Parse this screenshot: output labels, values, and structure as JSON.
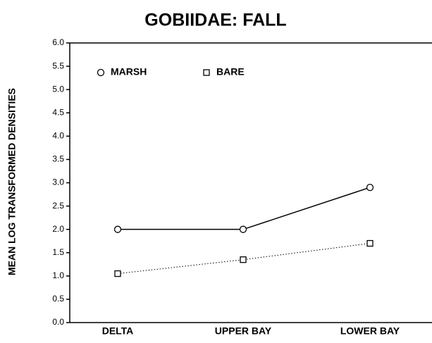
{
  "chart_data": {
    "type": "line",
    "title": "GOBIIDAE:  FALL",
    "y_label": "MEAN LOG TRANSFORMED DENSITIES",
    "categories": [
      "DELTA",
      "UPPER BAY",
      "LOWER BAY"
    ],
    "series": [
      {
        "name": "MARSH",
        "color": "#000000",
        "marker": "circle",
        "line_style": "solid",
        "values": [
          2.0,
          2.0,
          2.9
        ]
      },
      {
        "name": "BARE",
        "color": "#000000",
        "marker": "square",
        "line_style": "dotted",
        "values": [
          1.05,
          1.35,
          1.7
        ]
      }
    ],
    "ylim": [
      0,
      6
    ],
    "yticks": [
      {
        "value": 0,
        "label": "0.0"
      },
      0.5,
      {
        "value": 1,
        "label": "1.0"
      },
      1.5,
      {
        "value": 2,
        "label": "2.0"
      },
      2.5,
      {
        "value": 3,
        "label": "3.0"
      },
      3.5,
      {
        "value": 4,
        "label": "4.0"
      },
      4.5,
      {
        "value": 5,
        "label": "5.0"
      },
      5.5,
      {
        "value": 6,
        "label": "6.0"
      }
    ],
    "grid": false,
    "legend": "upper left"
  }
}
